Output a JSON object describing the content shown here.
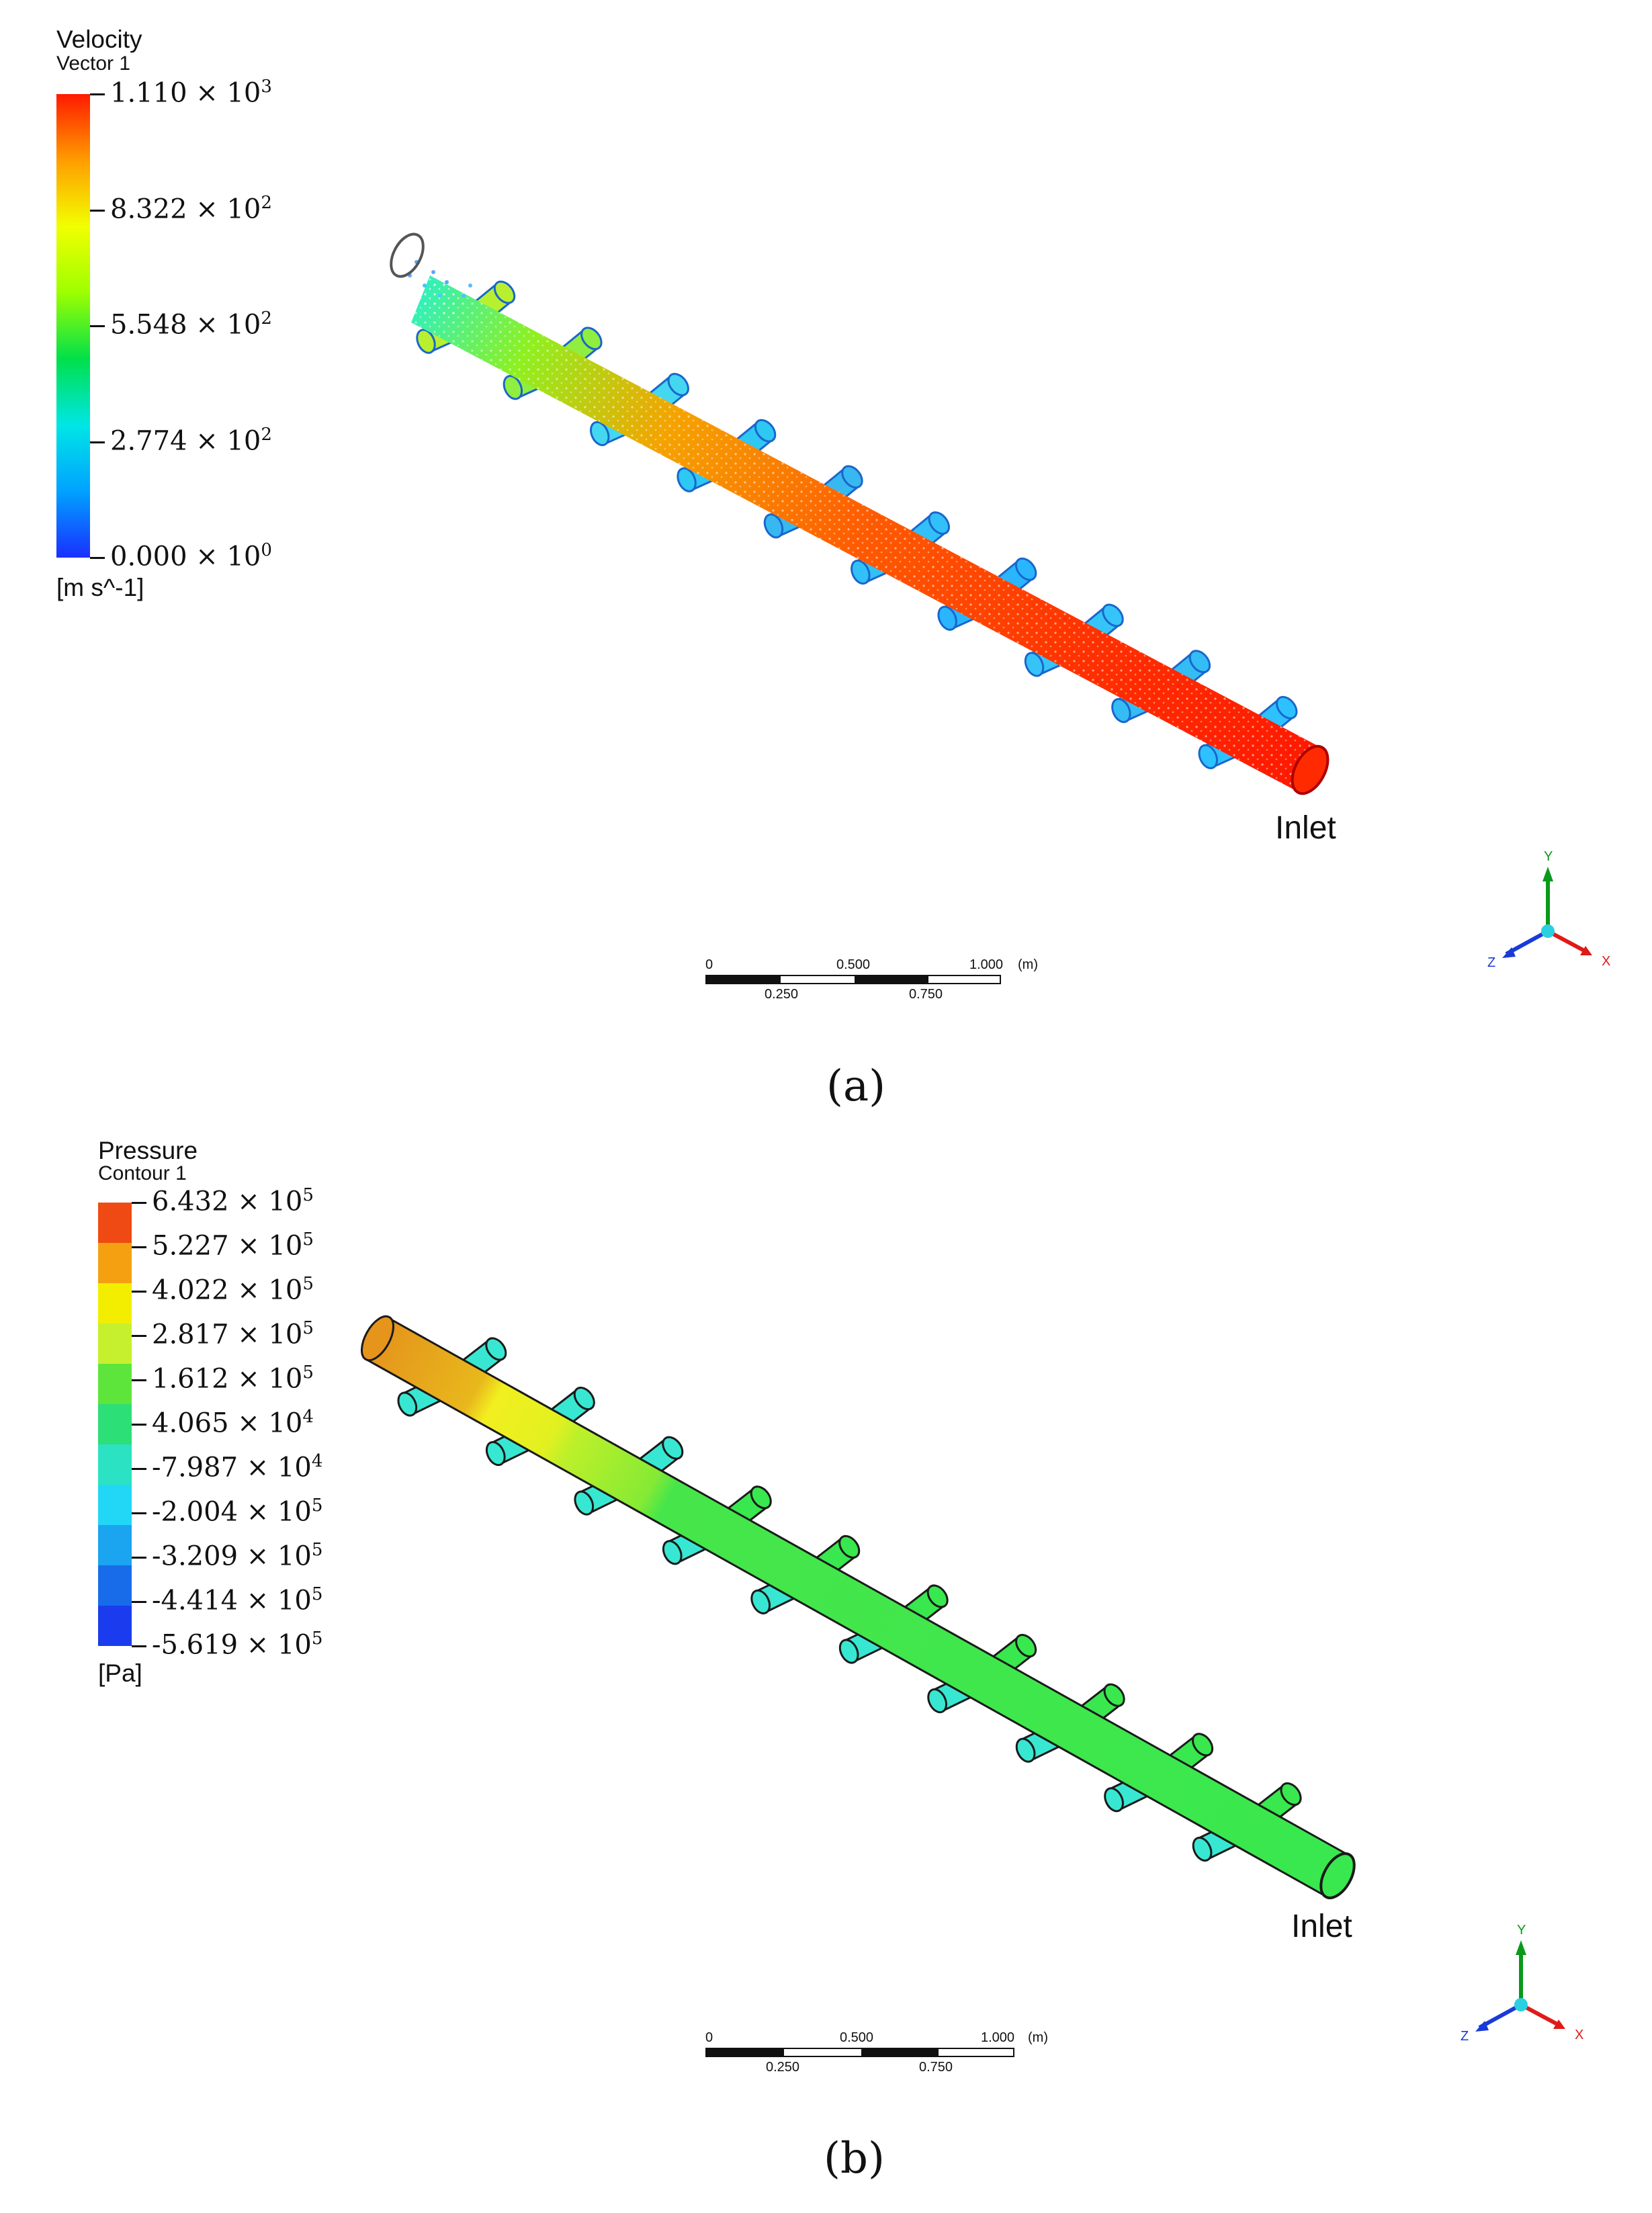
{
  "panel_a": {
    "legend": {
      "title": "Velocity",
      "subtitle": "Vector 1",
      "unit": "[m s^-1]",
      "ticks": [
        {
          "mantissa": "1.110",
          "exp": "3"
        },
        {
          "mantissa": "8.322",
          "exp": "2"
        },
        {
          "mantissa": "5.548",
          "exp": "2"
        },
        {
          "mantissa": "2.774",
          "exp": "2"
        },
        {
          "mantissa": "0.000",
          "exp": "0"
        }
      ],
      "gradient_colors": [
        "#ff1a00",
        "#ff9d00",
        "#f2ff00",
        "#9dff00",
        "#00e04a",
        "#00e6e6",
        "#00a2ff",
        "#1a2fff"
      ]
    },
    "inlet_label": "Inlet",
    "caption": "(a)",
    "scale_bar": {
      "top": [
        "0",
        "0.500",
        "1.000",
        "(m)"
      ],
      "bottom": [
        "0.250",
        "0.750"
      ]
    },
    "axes": {
      "y": "Y",
      "z": "Z",
      "x": "X"
    }
  },
  "panel_b": {
    "legend": {
      "title": "Pressure",
      "subtitle": "Contour 1",
      "unit": "[Pa]",
      "ticks": [
        {
          "mantissa": "6.432",
          "exp": "5"
        },
        {
          "mantissa": "5.227",
          "exp": "5"
        },
        {
          "mantissa": "4.022",
          "exp": "5"
        },
        {
          "mantissa": "2.817",
          "exp": "5"
        },
        {
          "mantissa": "1.612",
          "exp": "5"
        },
        {
          "mantissa": "4.065",
          "exp": "4"
        },
        {
          "mantissa": "-7.987",
          "exp": "4"
        },
        {
          "mantissa": "-2.004",
          "exp": "5"
        },
        {
          "mantissa": "-3.209",
          "exp": "5"
        },
        {
          "mantissa": "-4.414",
          "exp": "5"
        },
        {
          "mantissa": "-5.619",
          "exp": "5"
        }
      ],
      "band_colors": [
        "#f04a14",
        "#f5a011",
        "#f3ee00",
        "#c6f02e",
        "#5ee53b",
        "#2ddf77",
        "#2be2c3",
        "#22d7f5",
        "#1ba4ef",
        "#186cea",
        "#1a3cee"
      ]
    },
    "inlet_label": "Inlet",
    "caption": "(b)",
    "scale_bar": {
      "top": [
        "0",
        "0.500",
        "1.000",
        "(m)"
      ],
      "bottom": [
        "0.250",
        "0.750"
      ]
    },
    "axes": {
      "y": "Y",
      "z": "Z",
      "x": "X"
    }
  },
  "colors": {
    "pipe_green": "#38e84e",
    "branch_cyan": "#38e7d2",
    "pipe_orange": "#e99a1c",
    "pipe_yellow": "#f0ef20",
    "vector_red": "#ff2a00",
    "axis_y": "#0a9a1a",
    "axis_z": "#1a3ad8",
    "axis_x": "#e01a1a"
  }
}
